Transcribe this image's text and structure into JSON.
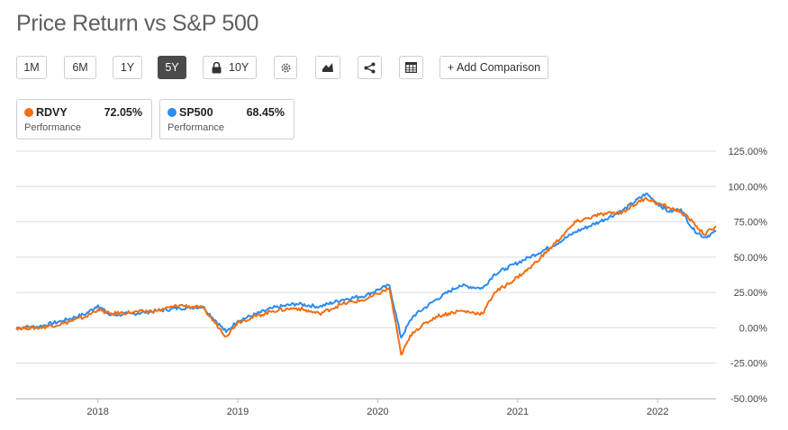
{
  "page": {
    "title": "Price Return vs S&P 500"
  },
  "toolbar": {
    "ranges": [
      "1M",
      "6M",
      "1Y",
      "5Y",
      "10Y"
    ],
    "active_range": "5Y",
    "locked_range_icon": "lock-icon",
    "settings_icon": "gear-icon",
    "chart_type_icon": "area-chart-icon",
    "share_icon": "share-icon",
    "table_icon": "table-icon",
    "add_comparison": "+ Add Comparison"
  },
  "legend": [
    {
      "symbol": "RDVY",
      "value": "72.05%",
      "label": "Performance",
      "color": "#f26f14"
    },
    {
      "symbol": "SP500",
      "value": "68.45%",
      "label": "Performance",
      "color": "#2a8cf5"
    }
  ],
  "chart_data": {
    "type": "line",
    "title": "Price Return vs S&P 500",
    "x_ticks": [
      "2018",
      "2019",
      "2020",
      "2021",
      "2022"
    ],
    "y_ticks": [
      "125.00%",
      "100.00%",
      "75.00%",
      "50.00%",
      "25.00%",
      "0.00%",
      "-25.00%",
      "-50.00%"
    ],
    "ylim": [
      -50,
      125
    ],
    "xlim": [
      "2017-06",
      "2022-06"
    ],
    "grid": true,
    "series": [
      {
        "name": "SP500",
        "color": "#2a8cf5",
        "x": [
          "2017-06",
          "2017-08",
          "2017-10",
          "2017-12",
          "2018-01",
          "2018-02",
          "2018-04",
          "2018-06",
          "2018-08",
          "2018-10",
          "2018-12",
          "2019-01",
          "2019-04",
          "2019-06",
          "2019-08",
          "2019-10",
          "2019-12",
          "2020-01",
          "2020-02",
          "2020-03",
          "2020-04",
          "2020-06",
          "2020-08",
          "2020-10",
          "2020-11",
          "2020-12",
          "2021-02",
          "2021-04",
          "2021-06",
          "2021-08",
          "2021-10",
          "2021-12",
          "2022-01",
          "2022-02",
          "2022-03",
          "2022-04",
          "2022-05",
          "2022-06"
        ],
        "values": [
          0,
          1,
          5,
          10,
          16,
          9,
          10,
          12,
          14,
          15,
          -3,
          5,
          14,
          17,
          15,
          20,
          23,
          27,
          30,
          -7,
          8,
          20,
          30,
          28,
          38,
          42,
          50,
          58,
          68,
          75,
          83,
          95,
          88,
          82,
          84,
          70,
          64,
          68
        ]
      },
      {
        "name": "RDVY",
        "color": "#f26f14",
        "x": [
          "2017-06",
          "2017-08",
          "2017-10",
          "2017-12",
          "2018-01",
          "2018-02",
          "2018-04",
          "2018-06",
          "2018-08",
          "2018-10",
          "2018-12",
          "2019-01",
          "2019-04",
          "2019-06",
          "2019-08",
          "2019-10",
          "2019-12",
          "2020-01",
          "2020-02",
          "2020-03",
          "2020-04",
          "2020-06",
          "2020-08",
          "2020-10",
          "2020-11",
          "2020-12",
          "2021-02",
          "2021-04",
          "2021-06",
          "2021-08",
          "2021-10",
          "2021-12",
          "2022-01",
          "2022-02",
          "2022-03",
          "2022-04",
          "2022-05",
          "2022-06"
        ],
        "values": [
          0,
          0,
          3,
          8,
          13,
          10,
          11,
          12,
          16,
          14,
          -6,
          4,
          12,
          14,
          10,
          17,
          20,
          24,
          28,
          -19,
          -3,
          8,
          12,
          10,
          25,
          30,
          42,
          58,
          75,
          80,
          82,
          92,
          88,
          85,
          82,
          75,
          66,
          72
        ]
      }
    ]
  }
}
